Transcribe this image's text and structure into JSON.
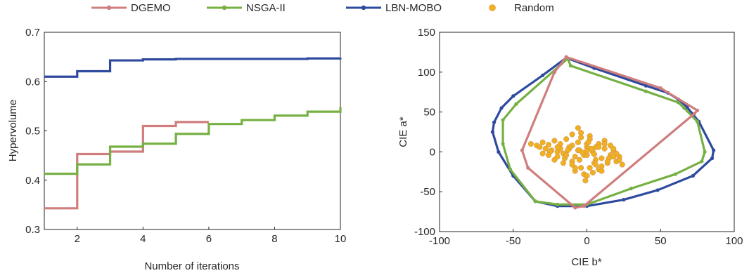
{
  "legend": {
    "items": [
      {
        "label": "DGEMO",
        "color": "#cf7d7d",
        "marker": "line"
      },
      {
        "label": "NSGA-II",
        "color": "#76b043",
        "marker": "line"
      },
      {
        "label": "LBN-MOBO",
        "color": "#2e4a9e",
        "marker": "line"
      },
      {
        "label": "Random",
        "color": "#f0b020",
        "marker": "dot"
      }
    ]
  },
  "chart_data": [
    {
      "type": "line",
      "step": true,
      "xlabel": "Number of iterations",
      "ylabel": "Hypervolume",
      "xlim": [
        1,
        10
      ],
      "ylim": [
        0.3,
        0.7
      ],
      "xticks": [
        2,
        4,
        6,
        8,
        10
      ],
      "yticks": [
        0.3,
        0.4,
        0.5,
        0.6,
        0.7
      ],
      "grid": false,
      "series": [
        {
          "name": "DGEMO",
          "color": "#cf7d7d",
          "x": [
            1,
            2,
            3,
            4,
            5,
            6
          ],
          "y": [
            0.343,
            0.453,
            0.458,
            0.51,
            0.518,
            0.518
          ]
        },
        {
          "name": "NSGA-II",
          "color": "#76b043",
          "x": [
            1,
            2,
            3,
            4,
            5,
            6,
            7,
            8,
            9,
            10
          ],
          "y": [
            0.413,
            0.432,
            0.468,
            0.474,
            0.494,
            0.514,
            0.522,
            0.531,
            0.539,
            0.548
          ]
        },
        {
          "name": "LBN-MOBO",
          "color": "#2e4a9e",
          "x": [
            1,
            2,
            3,
            4,
            5,
            6,
            7,
            8,
            9,
            10
          ],
          "y": [
            0.61,
            0.621,
            0.643,
            0.645,
            0.646,
            0.646,
            0.646,
            0.646,
            0.647,
            0.648
          ]
        }
      ]
    },
    {
      "type": "scatter",
      "xlabel": "CIE b*",
      "ylabel": "CIE a*",
      "xlim": [
        -100,
        100
      ],
      "ylim": [
        -100,
        150
      ],
      "xticks": [
        -100,
        -50,
        0,
        50,
        100
      ],
      "yticks": [
        -100,
        -50,
        0,
        50,
        100,
        150
      ],
      "grid": false,
      "series": [
        {
          "name": "DGEMO",
          "color": "#cf7d7d",
          "kind": "polygon",
          "x": [
            -14,
            50,
            75,
            73,
            -2,
            -8,
            -40,
            -44,
            -22,
            -14
          ],
          "y": [
            119,
            80,
            52,
            48,
            -68,
            -70,
            -20,
            2,
            100,
            119
          ]
        },
        {
          "name": "NSGA-II",
          "color": "#76b043",
          "kind": "polygon",
          "x": [
            -13,
            -11,
            40,
            62,
            66,
            75,
            80,
            78,
            60,
            30,
            0,
            -20,
            -35,
            -52,
            -57,
            -57,
            -48,
            -13
          ],
          "y": [
            117,
            108,
            76,
            62,
            55,
            38,
            0,
            -12,
            -28,
            -46,
            -66,
            -66,
            -62,
            -22,
            10,
            40,
            60,
            117
          ]
        },
        {
          "name": "LBN-MOBO",
          "color": "#2e4a9e",
          "kind": "polygon",
          "x": [
            -14,
            5,
            40,
            55,
            62,
            68,
            76,
            86,
            85,
            72,
            48,
            25,
            0,
            -20,
            -35,
            -50,
            -60,
            -64,
            -63,
            -58,
            -50,
            -30,
            -14
          ],
          "y": [
            118,
            105,
            83,
            74,
            66,
            56,
            38,
            2,
            -8,
            -30,
            -48,
            -60,
            -68,
            -68,
            -62,
            -30,
            0,
            25,
            37,
            55,
            70,
            96,
            118
          ]
        },
        {
          "name": "Random",
          "color": "#f0b020",
          "kind": "points",
          "x": [
            -38,
            -34,
            -32,
            -30,
            -28,
            -26,
            -24,
            -22,
            -20,
            -18,
            -16,
            -14,
            -12,
            -10,
            -8,
            -6,
            -4,
            -2,
            0,
            2,
            4,
            6,
            8,
            10,
            12,
            14,
            16,
            18,
            20,
            22,
            24,
            -30,
            -25,
            -20,
            -15,
            -10,
            -5,
            0,
            5,
            10,
            15,
            20,
            -22,
            -16,
            -10,
            -4,
            2,
            8,
            14,
            18,
            -26,
            -18,
            -12,
            -6,
            0,
            6,
            12,
            16,
            -8,
            -2,
            4,
            10,
            -10,
            -4,
            2,
            0,
            -5,
            3,
            -3,
            5,
            -13,
            -8,
            8,
            12,
            -20,
            -14,
            18,
            22,
            -6,
            6,
            0,
            -1,
            1
          ],
          "y": [
            10,
            8,
            6,
            12,
            4,
            9,
            2,
            14,
            0,
            10,
            -2,
            16,
            4,
            8,
            -6,
            12,
            18,
            -4,
            6,
            20,
            0,
            -10,
            10,
            -8,
            4,
            -14,
            -4,
            2,
            -12,
            -6,
            -16,
            -2,
            0,
            -6,
            -8,
            -12,
            -10,
            -4,
            -14,
            -18,
            -8,
            -2,
            -10,
            -14,
            -16,
            -20,
            -20,
            -22,
            -12,
            -6,
            -4,
            4,
            6,
            2,
            10,
            6,
            14,
            8,
            -24,
            -28,
            -26,
            -24,
            22,
            24,
            16,
            -30,
            2,
            4,
            -1,
            -3,
            2,
            -20,
            6,
            10,
            6,
            -4,
            4,
            -10,
            30,
            -16,
            1,
            -36,
            12
          ]
        }
      ]
    }
  ]
}
